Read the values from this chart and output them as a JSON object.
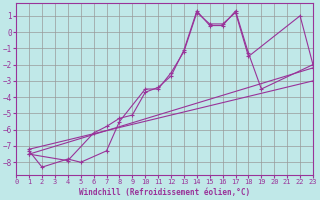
{
  "xlabel": "Windchill (Refroidissement éolien,°C)",
  "background_color": "#c0e8e8",
  "grid_color": "#999999",
  "line_color": "#993399",
  "xlim": [
    0,
    23
  ],
  "ylim": [
    -8.5,
    1.5
  ],
  "yticks": [
    1,
    0,
    -1,
    -2,
    -3,
    -4,
    -5,
    -6,
    -7,
    -8
  ],
  "xticks": [
    0,
    1,
    2,
    3,
    4,
    5,
    6,
    7,
    8,
    9,
    10,
    11,
    12,
    13,
    14,
    15,
    16,
    17,
    18,
    19,
    20,
    21,
    22,
    23
  ],
  "line1_x": [
    1,
    2,
    4,
    5,
    7,
    8,
    10,
    11,
    12,
    13,
    14,
    15,
    16,
    17,
    18,
    22,
    23
  ],
  "line1_y": [
    -7.3,
    -8.3,
    -7.8,
    -8.0,
    -7.3,
    -5.5,
    -3.5,
    -3.5,
    -2.5,
    -1.2,
    1.2,
    0.5,
    0.5,
    1.2,
    -1.5,
    1.0,
    -2.0
  ],
  "line2_x": [
    1,
    4,
    6,
    7,
    8,
    9,
    10,
    11,
    12,
    13,
    14,
    15,
    16,
    17,
    18,
    19,
    23
  ],
  "line2_y": [
    -7.5,
    -7.9,
    -6.2,
    -5.8,
    -5.3,
    -5.1,
    -3.7,
    -3.4,
    -2.7,
    -1.1,
    1.3,
    0.4,
    0.4,
    1.3,
    -1.3,
    -3.5,
    -2.0
  ],
  "line3_x": [
    1,
    23
  ],
  "line3_y": [
    -7.5,
    -2.2
  ],
  "line4_x": [
    1,
    23
  ],
  "line4_y": [
    -7.2,
    -3.0
  ]
}
